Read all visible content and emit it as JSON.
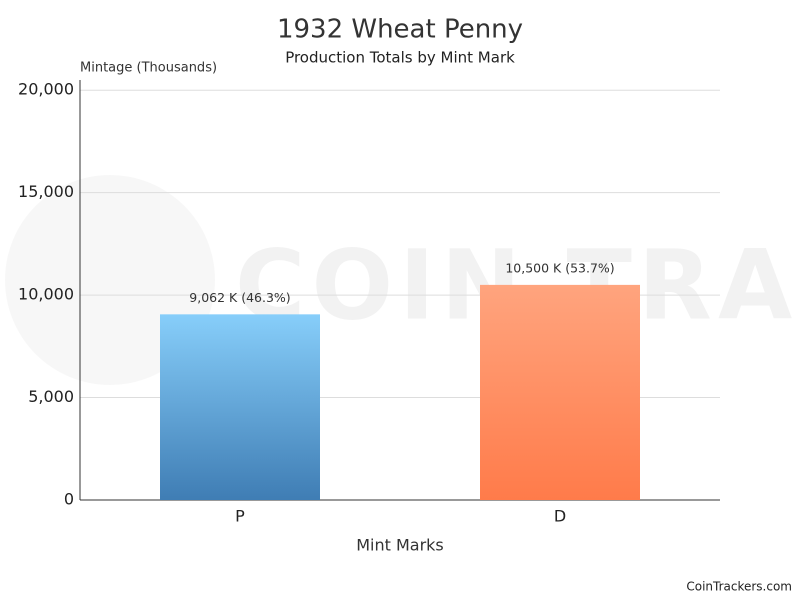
{
  "chart_data": {
    "type": "bar",
    "title": "1932 Wheat Penny",
    "subtitle": "Production Totals by Mint Mark",
    "y_label": "Mintage (Thousands)",
    "x_label": "Mint Marks",
    "watermark": "COIN TRACKERS",
    "credit": "CoinTrackers.com",
    "categories": [
      "P",
      "D"
    ],
    "values": [
      9062,
      10500
    ],
    "value_labels": [
      "9,062 K (46.3%)",
      "10,500 K (53.7%)"
    ],
    "colors": [
      [
        "#87cefa",
        "#3f7db4"
      ],
      [
        "#ffa47e",
        "#ff7b4a"
      ]
    ],
    "ylim": [
      0,
      20500
    ],
    "yticks": [
      0,
      {
        "value": 5000,
        "label": "5,000"
      },
      {
        "value": 10000,
        "label": "10,000"
      },
      {
        "value": 15000,
        "label": "15,000"
      },
      {
        "value": 20000,
        "label": "20,000"
      }
    ],
    "grid": true
  }
}
